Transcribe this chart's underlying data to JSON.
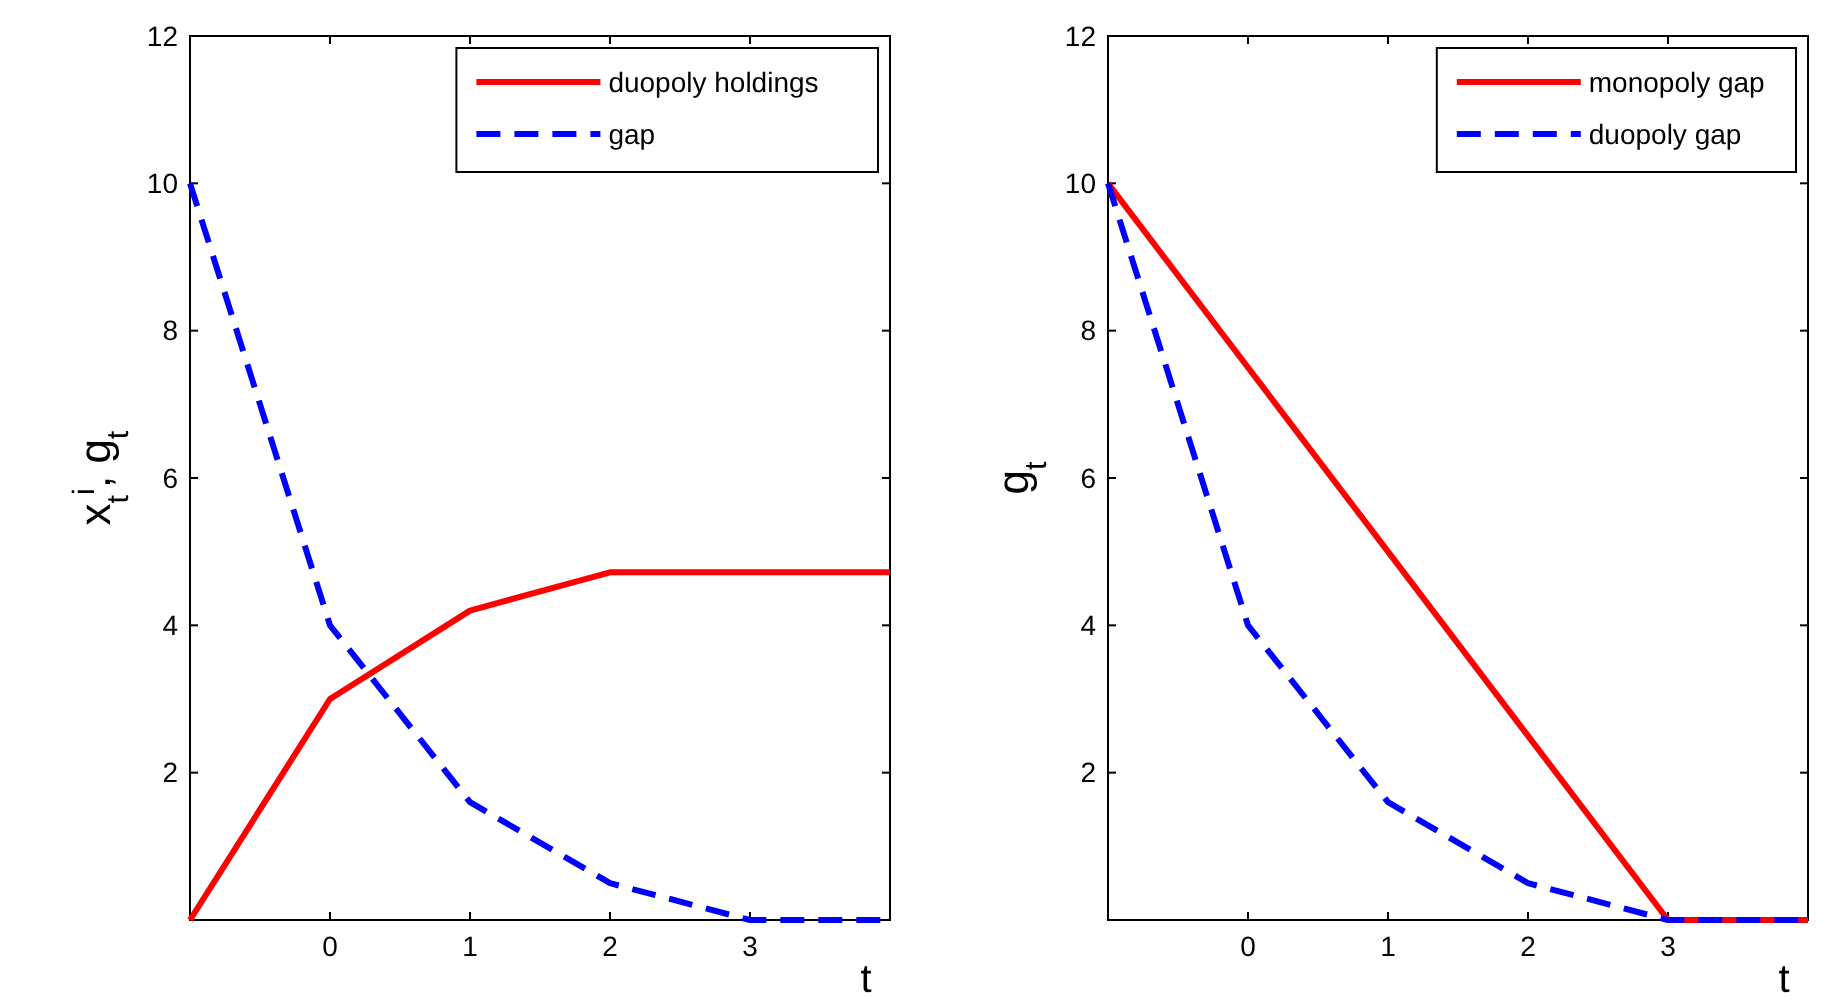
{
  "chart_data": [
    {
      "type": "line",
      "xlabel": "t",
      "ylabel": "x$_{t}$$^{i}$, g$_{t}$",
      "xlim": [
        -1,
        4
      ],
      "ylim": [
        0,
        12
      ],
      "xticks": [
        0,
        1,
        2,
        3
      ],
      "yticks": [
        2,
        4,
        6,
        8,
        10,
        12
      ],
      "grid": false,
      "legend": "top right",
      "marker": "none",
      "x": [
        -1,
        0,
        1,
        2,
        3,
        4
      ],
      "series": [
        {
          "name": "duopoly holdings",
          "color": "#ff0000",
          "line_style": "solid",
          "values": [
            0,
            3,
            4.2,
            4.72,
            4.72,
            4.72
          ]
        },
        {
          "name": "gap",
          "color": "#0000ff",
          "line_style": "dashed",
          "values": [
            10,
            4,
            1.6,
            0.5,
            0,
            0
          ]
        }
      ]
    },
    {
      "type": "line",
      "xlabel": "t",
      "ylabel": "g$_{t}$",
      "xlim": [
        -1,
        4
      ],
      "ylim": [
        0,
        12
      ],
      "xticks": [
        0,
        1,
        2,
        3
      ],
      "yticks": [
        2,
        4,
        6,
        8,
        10,
        12
      ],
      "grid": false,
      "legend": "top right",
      "marker": "none",
      "x": [
        -1,
        0,
        1,
        2,
        3,
        4
      ],
      "series": [
        {
          "name": "monopoly gap",
          "color": "#ff0000",
          "line_style": "solid",
          "values": [
            10,
            7.5,
            5,
            2.5,
            0,
            0
          ]
        },
        {
          "name": "duopoly gap",
          "color": "#0000ff",
          "line_style": "dashed",
          "values": [
            10,
            4,
            1.6,
            0.5,
            0,
            0
          ]
        }
      ]
    }
  ]
}
